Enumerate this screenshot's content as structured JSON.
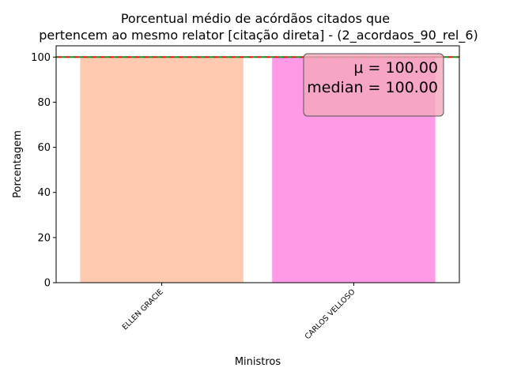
{
  "chart_data": {
    "type": "bar",
    "title_lines": [
      "Porcentual médio de acórdãos citados que",
      "pertencem ao mesmo relator [citação direta] - (2_acordaos_90_rel_6)"
    ],
    "xlabel": "Ministros",
    "ylabel": "Porcentagem",
    "categories": [
      "ELLEN GRACIE",
      "CARLOS VELLOSO"
    ],
    "values": [
      100.0,
      100.0
    ],
    "bar_colors": [
      "#ffcab0",
      "#ff9ae6"
    ],
    "ylim": [
      0,
      105
    ],
    "yticks": [
      0,
      20,
      40,
      60,
      80,
      100
    ],
    "mean_line": {
      "value": 100.0,
      "color": "#ff0000"
    },
    "median_line": {
      "value": 100.0,
      "color": "#228b22"
    },
    "stats_box": {
      "mean_text": "μ = 100.00",
      "median_text": "median = 100.00",
      "placement": "top-right",
      "background": "#f4a8bd"
    },
    "grid": false
  }
}
